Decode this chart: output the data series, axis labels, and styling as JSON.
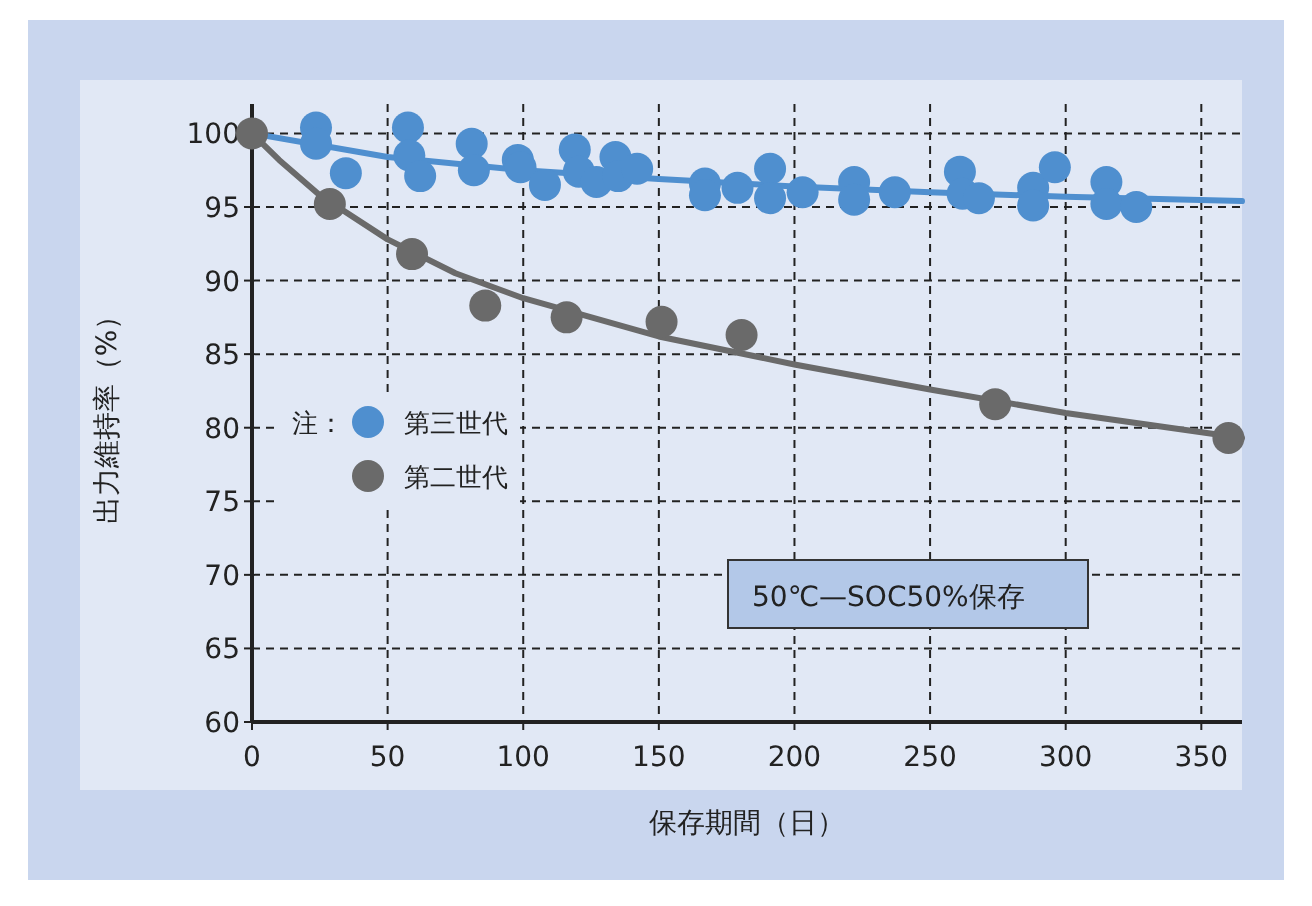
{
  "chart_data": {
    "type": "scatter",
    "xlabel": "保存期間（日）",
    "ylabel": "出力維持率（%）",
    "xlim": [
      0,
      365
    ],
    "ylim": [
      60,
      102
    ],
    "xticks": [
      0,
      50,
      100,
      150,
      200,
      250,
      300,
      350
    ],
    "yticks": [
      60,
      65,
      70,
      75,
      80,
      85,
      90,
      95,
      100
    ],
    "grid": true,
    "legend": "left",
    "legend_title": "注：",
    "annotations": [
      "50℃—SOC50%保存"
    ],
    "series": [
      {
        "type": "line",
        "color": "#4f8fcf",
        "marker": "none",
        "line_style": "solid",
        "x": [
          0,
          50,
          100,
          150,
          200,
          250,
          300,
          365
        ],
        "values": [
          100,
          98.4,
          97.5,
          96.9,
          96.4,
          96.0,
          95.7,
          95.4
        ]
      },
      {
        "type": "line",
        "color": "#6a6a6a",
        "marker": "none",
        "line_style": "solid",
        "x": [
          0,
          10,
          25,
          50,
          75,
          100,
          150,
          200,
          250,
          300,
          365
        ],
        "values": [
          100,
          98.2,
          95.8,
          92.8,
          90.5,
          88.8,
          86.2,
          84.3,
          82.6,
          81.0,
          79.3
        ]
      },
      {
        "name": "第三世代",
        "color": "#4f8fcf",
        "marker": "circle",
        "x": [
          23.6,
          23.6,
          34.6,
          57.5,
          58,
          62,
          81,
          81.8,
          98,
          99,
          108,
          119,
          120.5,
          127,
          134,
          135,
          142,
          167,
          167,
          179,
          191,
          191,
          203,
          222,
          222,
          237,
          261,
          262,
          268,
          288,
          288,
          296,
          315,
          315,
          326
        ],
        "values": [
          100.4,
          99.3,
          97.3,
          100.4,
          98.5,
          97.1,
          99.3,
          97.5,
          98.2,
          97.7,
          96.5,
          98.9,
          97.4,
          96.7,
          98.4,
          97.1,
          97.6,
          96.6,
          95.8,
          96.3,
          97.6,
          95.6,
          96.0,
          96.7,
          95.5,
          96.0,
          97.4,
          95.9,
          95.6,
          96.3,
          95.1,
          97.7,
          96.7,
          95.2,
          95.0
        ]
      },
      {
        "name": "第二世代",
        "color": "#6a6a6a",
        "marker": "circle",
        "x": [
          0,
          28.7,
          59,
          86,
          116,
          151,
          180.5,
          274,
          360
        ],
        "values": [
          100,
          95.2,
          91.8,
          88.3,
          87.5,
          87.2,
          86.3,
          81.6,
          79.3
        ]
      }
    ]
  }
}
